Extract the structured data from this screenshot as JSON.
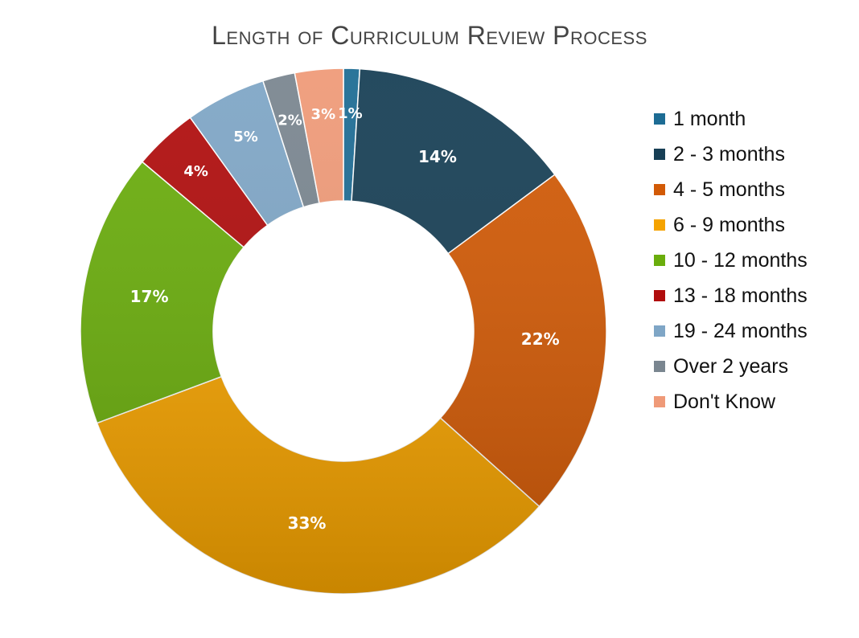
{
  "chart_data": {
    "type": "pie",
    "variant": "donut",
    "title": "Length of Curriculum Review Process",
    "legend_position": "right",
    "categories": [
      "1 month",
      "2 - 3 months",
      "4 - 5 months",
      "6 - 9 months",
      "10 - 12 months",
      "13 - 18 months",
      "19 - 24 months",
      "Over 2 years",
      "Don't Know"
    ],
    "values": [
      1,
      14,
      22,
      33,
      17,
      4,
      5,
      2,
      3
    ],
    "labels": [
      "1%",
      "14%",
      "22%",
      "33%",
      "17%",
      "4%",
      "5%",
      "2%",
      "3%"
    ],
    "colors": [
      "#1d6c94",
      "#173f55",
      "#d25a06",
      "#f5a300",
      "#6aad0c",
      "#b00d0d",
      "#7fa6c6",
      "#7a8690",
      "#ef9a78"
    ]
  }
}
